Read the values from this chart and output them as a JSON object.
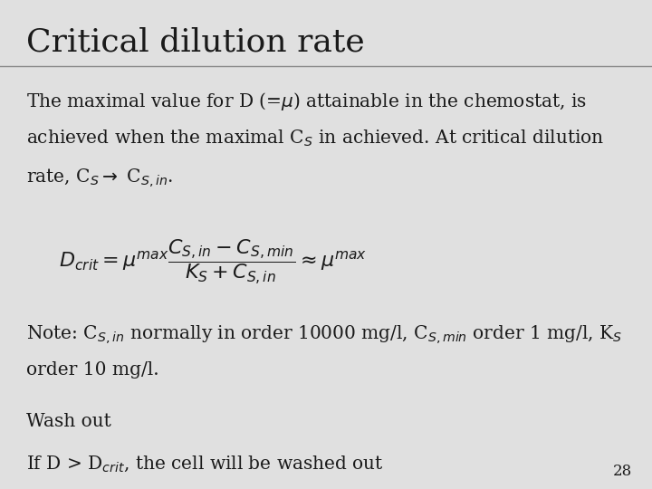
{
  "title": "Critical dilution rate",
  "title_fontsize": 26,
  "title_font": "DejaVu Serif",
  "body_fontsize": 14.5,
  "body_font": "DejaVu Serif",
  "bg_color": "#e0e0e0",
  "text_color": "#1a1a1a",
  "page_number": "28",
  "line_color": "#888888",
  "formula_fontsize": 16
}
